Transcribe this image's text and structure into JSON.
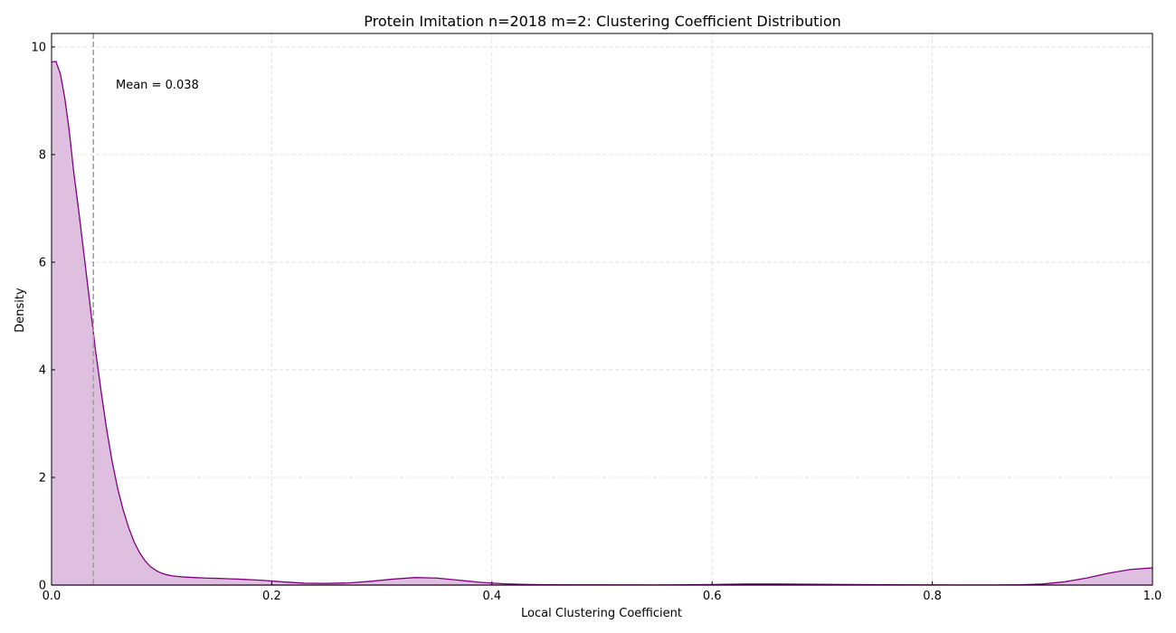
{
  "chart_data": {
    "type": "area",
    "title": "Protein Imitation n=2018 m=2: Clustering Coefficient Distribution",
    "xlabel": "Local Clustering Coefficient",
    "ylabel": "Density",
    "xlim": [
      0.0,
      1.0
    ],
    "ylim": [
      0,
      10.25
    ],
    "xticks": [
      "0.0",
      "0.2",
      "0.4",
      "0.6",
      "0.8",
      "1.0"
    ],
    "yticks": [
      "0",
      "2",
      "4",
      "6",
      "8",
      "10"
    ],
    "grid": true,
    "series": [
      {
        "x": [
          0.0,
          0.004,
          0.008,
          0.012,
          0.016,
          0.02,
          0.025,
          0.03,
          0.035,
          0.04,
          0.045,
          0.05,
          0.055,
          0.06,
          0.065,
          0.07,
          0.075,
          0.08,
          0.085,
          0.09,
          0.095,
          0.1,
          0.105,
          0.11,
          0.115,
          0.12,
          0.13,
          0.14,
          0.15,
          0.17,
          0.19,
          0.21,
          0.23,
          0.25,
          0.27,
          0.29,
          0.31,
          0.33,
          0.35,
          0.37,
          0.39,
          0.41,
          0.43,
          0.45,
          0.5,
          0.55,
          0.6,
          0.63,
          0.66,
          0.7,
          0.74,
          0.78,
          0.82,
          0.86,
          0.88,
          0.9,
          0.92,
          0.94,
          0.96,
          0.98,
          1.0
        ],
        "y": [
          9.72,
          9.73,
          9.5,
          9.05,
          8.45,
          7.7,
          6.9,
          6.05,
          5.2,
          4.35,
          3.6,
          2.9,
          2.3,
          1.8,
          1.4,
          1.07,
          0.8,
          0.6,
          0.45,
          0.34,
          0.27,
          0.22,
          0.19,
          0.17,
          0.16,
          0.15,
          0.14,
          0.13,
          0.125,
          0.11,
          0.09,
          0.06,
          0.035,
          0.03,
          0.04,
          0.07,
          0.11,
          0.14,
          0.13,
          0.09,
          0.05,
          0.025,
          0.012,
          0.006,
          0.003,
          0.002,
          0.01,
          0.02,
          0.02,
          0.015,
          0.008,
          0.003,
          0.002,
          0.002,
          0.005,
          0.02,
          0.06,
          0.13,
          0.22,
          0.29,
          0.32
        ],
        "color": "#800080",
        "fill": "#dfbfdf"
      }
    ],
    "mean_line": {
      "x": 0.038,
      "color": "#a0a0a0"
    },
    "annotation": "Mean = 0.038"
  }
}
